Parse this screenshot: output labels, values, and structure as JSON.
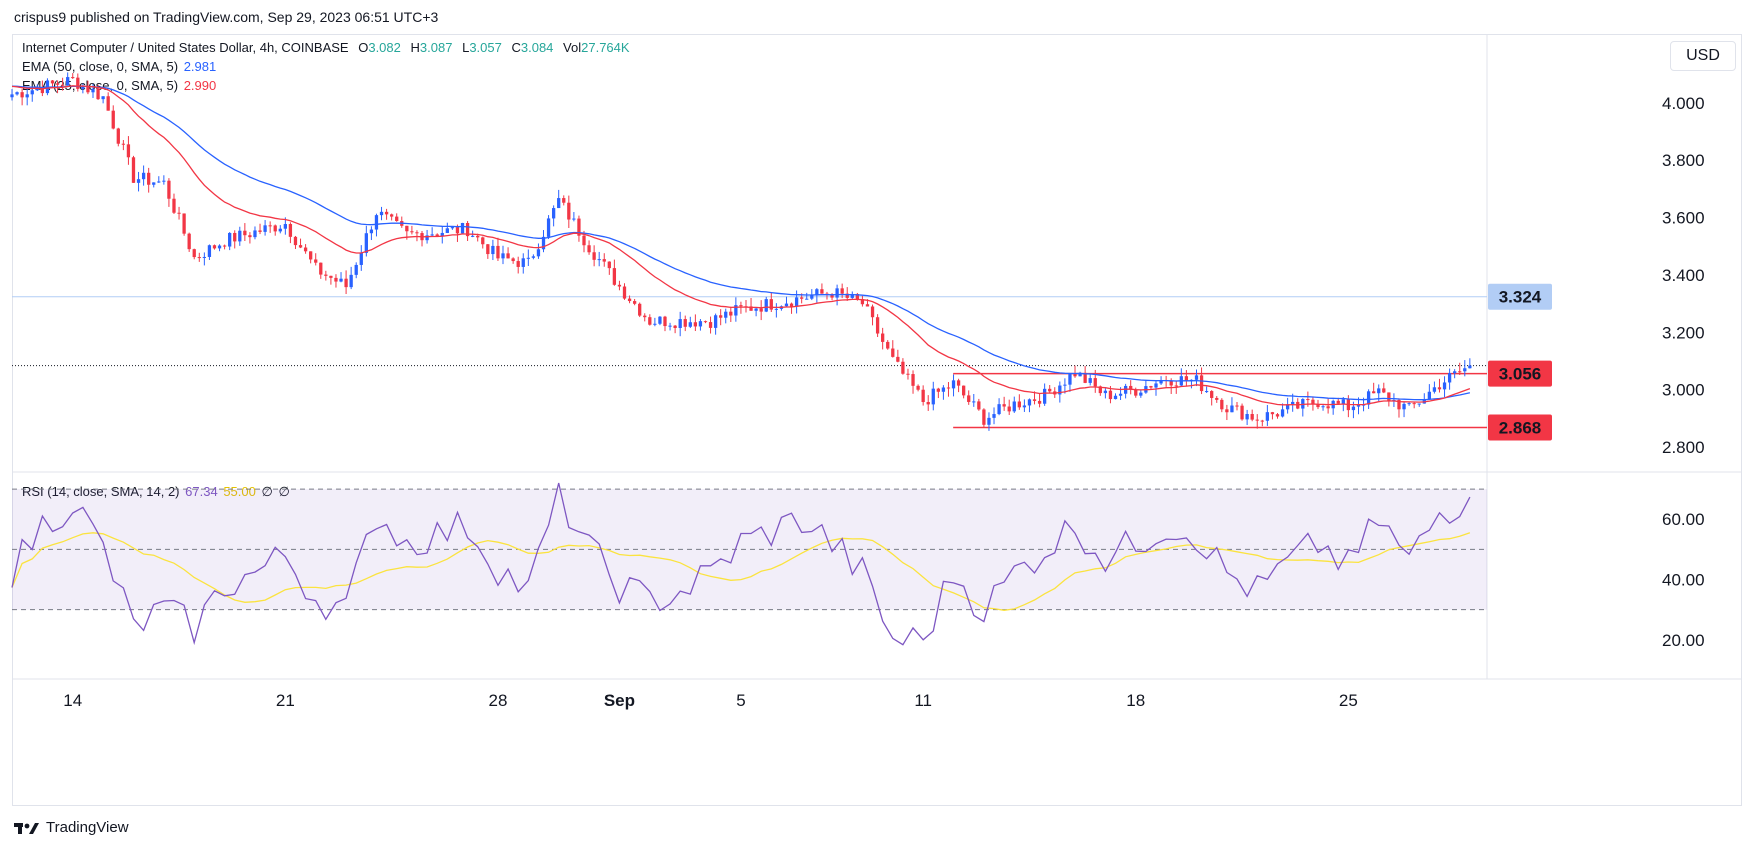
{
  "header": {
    "publisher": "crispus9 published on TradingView.com, Sep 29, 2023 06:51 UTC+3"
  },
  "legend": {
    "symbol": "Internet Computer / United States Dollar, 4h, COINBASE",
    "o_label": "O",
    "o": "3.082",
    "h_label": "H",
    "h": "3.087",
    "l_label": "L",
    "l": "3.057",
    "c_label": "C",
    "c": "3.084",
    "vol_label": "Vol",
    "vol": "27.764K",
    "ema50_label": "EMA (50, close, 0, SMA, 5)",
    "ema50_value": "2.981",
    "ema25_label": "EMA (25, close, 0, SMA, 5)",
    "ema25_value": "2.990",
    "rsi_label": "RSI (14, close, SMA, 14, 2)",
    "rsi_value": "67.34",
    "rsi_sma_value": "55.00",
    "rsi_extra1": "∅",
    "rsi_extra2": "∅"
  },
  "currency_button": "USD",
  "footer": {
    "brand": "TradingView"
  },
  "colors": {
    "up": "#26a69a",
    "up_display": "#2962ff",
    "down": "#f23645",
    "ema50": "#2962ff",
    "ema25": "#f23645",
    "rsi": "#7e57c2",
    "rsi_sma": "#fbe33f",
    "hline": "#b2cdf5"
  },
  "chart_data": [
    {
      "type": "candlestick",
      "y_ticks": [
        "4.000",
        "3.800",
        "3.600",
        "3.400",
        "3.200",
        "3.000",
        "2.800"
      ],
      "ylim": [
        2.72,
        4.24
      ],
      "x_ticks": [
        "14",
        "21",
        "28",
        "Sep",
        "5",
        "11",
        "18",
        "25"
      ],
      "price_labels": [
        {
          "value": 3.324,
          "label": "3.324",
          "color": "#b2cdf5",
          "text_color": "#131722"
        },
        {
          "value": 3.056,
          "label": "3.056",
          "color": "#f23645",
          "text_color": "#ffffff"
        },
        {
          "value": 2.868,
          "label": "2.868",
          "color": "#f23645",
          "text_color": "#ffffff"
        }
      ],
      "horizontal_lines": [
        {
          "value": 3.324,
          "style": "solid",
          "color": "#b2cdf5"
        },
        {
          "value": 3.084,
          "style": "dotted",
          "color": "#131722"
        }
      ],
      "range_lines": [
        {
          "value": 3.056,
          "from_date": "Sep 11",
          "color": "#f23645"
        },
        {
          "value": 2.868,
          "from_date": "Sep 11",
          "color": "#f23645"
        }
      ],
      "anchors": [
        {
          "date": "Aug 12",
          "close": 4.03
        },
        {
          "date": "Aug 14",
          "close": 4.08
        },
        {
          "date": "Aug 15",
          "close": 4.02
        },
        {
          "date": "Aug 16",
          "close": 3.74
        },
        {
          "date": "Aug 17",
          "close": 3.72
        },
        {
          "date": "Aug 18",
          "close": 3.46
        },
        {
          "date": "Aug 19",
          "close": 3.52
        },
        {
          "date": "Aug 21",
          "close": 3.58
        },
        {
          "date": "Aug 22",
          "close": 3.42
        },
        {
          "date": "Aug 23",
          "close": 3.36
        },
        {
          "date": "Aug 24",
          "close": 3.62
        },
        {
          "date": "Aug 25",
          "close": 3.54
        },
        {
          "date": "Aug 27",
          "close": 3.56
        },
        {
          "date": "Aug 28",
          "close": 3.46
        },
        {
          "date": "Aug 29",
          "close": 3.44
        },
        {
          "date": "Aug 30",
          "close": 3.66
        },
        {
          "date": "Aug 31",
          "close": 3.5
        },
        {
          "date": "Sep 1",
          "close": 3.36
        },
        {
          "date": "Sep 2",
          "close": 3.24
        },
        {
          "date": "Sep 4",
          "close": 3.24
        },
        {
          "date": "Sep 5",
          "close": 3.28
        },
        {
          "date": "Sep 7",
          "close": 3.32
        },
        {
          "date": "Sep 8",
          "close": 3.34
        },
        {
          "date": "Sep 9",
          "close": 3.3
        },
        {
          "date": "Sep 10",
          "close": 3.1
        },
        {
          "date": "Sep 11",
          "close": 2.96
        },
        {
          "date": "Sep 12",
          "close": 3.02
        },
        {
          "date": "Sep 13",
          "close": 2.9
        },
        {
          "date": "Sep 14",
          "close": 2.95
        },
        {
          "date": "Sep 15",
          "close": 2.98
        },
        {
          "date": "Sep 16",
          "close": 3.06
        },
        {
          "date": "Sep 17",
          "close": 2.98
        },
        {
          "date": "Sep 18",
          "close": 3.0
        },
        {
          "date": "Sep 19",
          "close": 3.04
        },
        {
          "date": "Sep 20",
          "close": 3.03
        },
        {
          "date": "Sep 21",
          "close": 2.94
        },
        {
          "date": "Sep 22",
          "close": 2.9
        },
        {
          "date": "Sep 23",
          "close": 2.93
        },
        {
          "date": "Sep 24",
          "close": 2.96
        },
        {
          "date": "Sep 25",
          "close": 2.94
        },
        {
          "date": "Sep 26",
          "close": 2.99
        },
        {
          "date": "Sep 27",
          "close": 2.93
        },
        {
          "date": "Sep 28",
          "close": 3.02
        },
        {
          "date": "Sep 29",
          "close": 3.084
        }
      ]
    },
    {
      "type": "line",
      "name": "RSI",
      "y_ticks": [
        "60.00",
        "40.00",
        "20.00"
      ],
      "ylim": [
        8,
        75
      ],
      "bands": {
        "upper": 70,
        "middle": 50,
        "lower": 30
      },
      "anchors": [
        {
          "date": "Aug 12",
          "rsi": 43
        },
        {
          "date": "Aug 13",
          "rsi": 58
        },
        {
          "date": "Aug 14",
          "rsi": 66
        },
        {
          "date": "Aug 15",
          "rsi": 50
        },
        {
          "date": "Aug 16",
          "rsi": 24
        },
        {
          "date": "Aug 17",
          "rsi": 30
        },
        {
          "date": "Aug 18",
          "rsi": 24
        },
        {
          "date": "Aug 19",
          "rsi": 38
        },
        {
          "date": "Aug 20",
          "rsi": 42
        },
        {
          "date": "Aug 21",
          "rsi": 48
        },
        {
          "date": "Aug 22",
          "rsi": 34
        },
        {
          "date": "Aug 23",
          "rsi": 30
        },
        {
          "date": "Aug 24",
          "rsi": 62
        },
        {
          "date": "Aug 25",
          "rsi": 52
        },
        {
          "date": "Aug 26",
          "rsi": 55
        },
        {
          "date": "Aug 27",
          "rsi": 58
        },
        {
          "date": "Aug 28",
          "rsi": 44
        },
        {
          "date": "Aug 29",
          "rsi": 36
        },
        {
          "date": "Aug 30",
          "rsi": 68
        },
        {
          "date": "Aug 31",
          "rsi": 50
        },
        {
          "date": "Sep 1",
          "rsi": 38
        },
        {
          "date": "Sep 2",
          "rsi": 33
        },
        {
          "date": "Sep 3",
          "rsi": 36
        },
        {
          "date": "Sep 4",
          "rsi": 42
        },
        {
          "date": "Sep 5",
          "rsi": 52
        },
        {
          "date": "Sep 6",
          "rsi": 56
        },
        {
          "date": "Sep 7",
          "rsi": 60
        },
        {
          "date": "Sep 8",
          "rsi": 52
        },
        {
          "date": "Sep 9",
          "rsi": 42
        },
        {
          "date": "Sep 10",
          "rsi": 20
        },
        {
          "date": "Sep 11",
          "rsi": 20
        },
        {
          "date": "Sep 12",
          "rsi": 42
        },
        {
          "date": "Sep 13",
          "rsi": 30
        },
        {
          "date": "Sep 14",
          "rsi": 42
        },
        {
          "date": "Sep 15",
          "rsi": 50
        },
        {
          "date": "Sep 16",
          "rsi": 58
        },
        {
          "date": "Sep 17",
          "rsi": 47
        },
        {
          "date": "Sep 18",
          "rsi": 52
        },
        {
          "date": "Sep 19",
          "rsi": 58
        },
        {
          "date": "Sep 20",
          "rsi": 55
        },
        {
          "date": "Sep 21",
          "rsi": 42
        },
        {
          "date": "Sep 22",
          "rsi": 36
        },
        {
          "date": "Sep 23",
          "rsi": 45
        },
        {
          "date": "Sep 24",
          "rsi": 52
        },
        {
          "date": "Sep 25",
          "rsi": 44
        },
        {
          "date": "Sep 26",
          "rsi": 60
        },
        {
          "date": "Sep 27",
          "rsi": 46
        },
        {
          "date": "Sep 28",
          "rsi": 62
        },
        {
          "date": "Sep 29",
          "rsi": 67.34
        }
      ]
    }
  ]
}
